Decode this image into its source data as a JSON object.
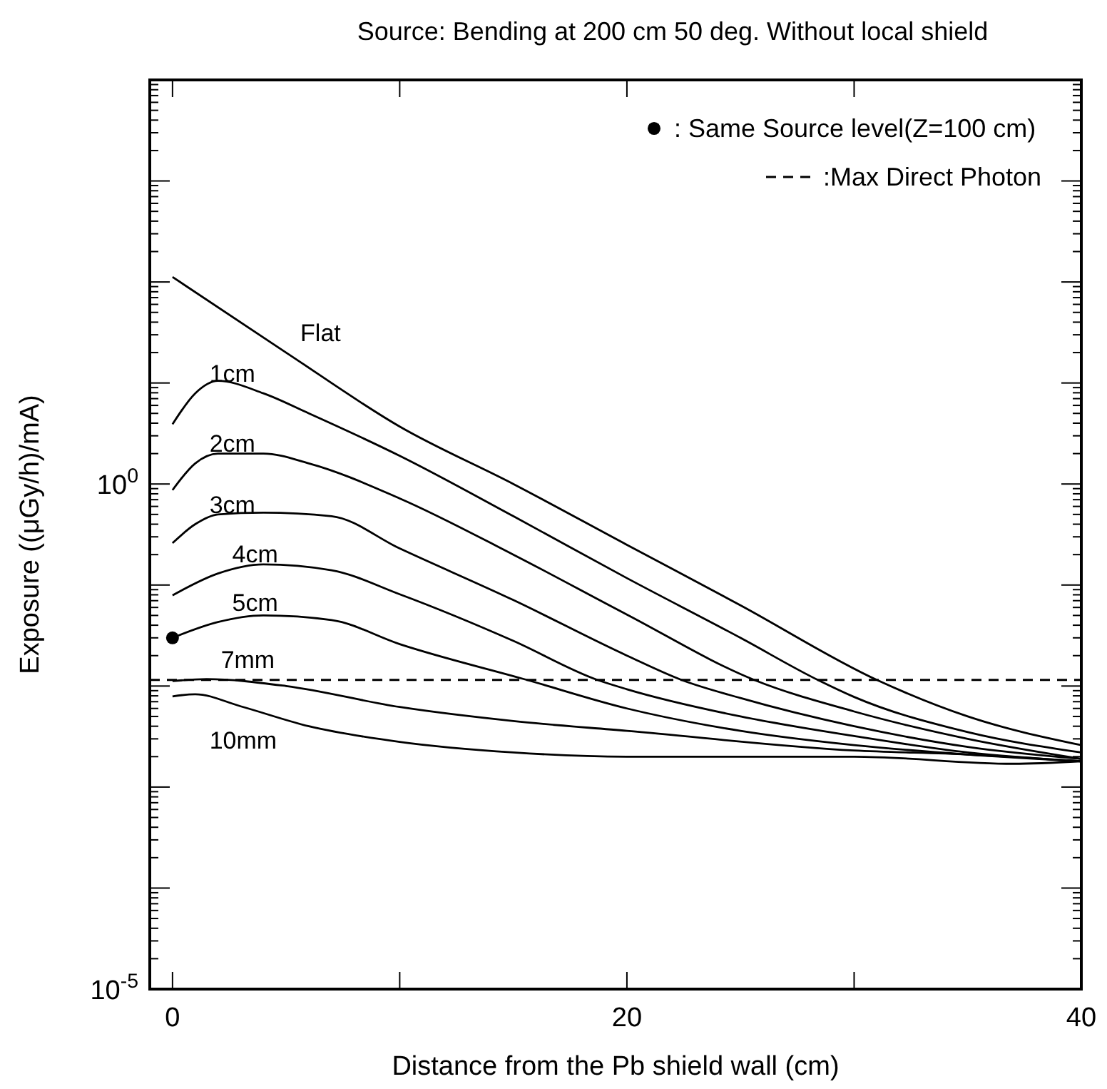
{
  "chart_data": {
    "type": "line",
    "title": "Source: Bending at 200 cm 50 deg. Without local shield",
    "xlabel": "Distance from the Pb shield wall (cm)",
    "ylabel": "Exposure ((μGy/h)/mA)",
    "log": "y",
    "xlim": [
      -1,
      40
    ],
    "ylim": [
      1e-05,
      10000
    ],
    "xticks": [
      0,
      {
        "value": 10,
        "label": null
      },
      20,
      {
        "value": 30,
        "label": null
      },
      40
    ],
    "yticks": [
      {
        "value": 1e-05,
        "label": "10$^{-5}$"
      },
      {
        "value": 0.0001,
        "label": null
      },
      {
        "value": 0.001,
        "label": null
      },
      {
        "value": 0.01,
        "label": null
      },
      {
        "value": 0.1,
        "label": null
      },
      {
        "value": 1,
        "label": "10$^{0}$"
      },
      {
        "value": 10,
        "label": null
      },
      {
        "value": 100,
        "label": null
      },
      {
        "value": 1000,
        "label": null
      },
      {
        "value": 10000,
        "label": null
      }
    ],
    "grid": false,
    "legend": "top right",
    "marker": "none",
    "line_style": "solid",
    "series": [
      {
        "name": "Flat",
        "color": "#000000",
        "x": [
          0,
          5,
          10,
          15,
          20,
          25,
          31,
          35,
          40
        ],
        "values": [
          112,
          20,
          3.7,
          1.0,
          0.25,
          0.063,
          0.0115,
          0.005,
          0.0026
        ]
      },
      {
        "name": "1cm",
        "color": "#000000",
        "x": [
          0,
          1,
          2,
          4,
          6,
          10,
          15,
          20,
          25,
          28.4,
          30,
          35,
          40
        ],
        "values": [
          3.9,
          7.9,
          10.5,
          7.9,
          5.0,
          1.9,
          0.48,
          0.117,
          0.03,
          0.0115,
          0.0078,
          0.0035,
          0.0022
        ]
      },
      {
        "name": "2cm",
        "color": "#000000",
        "x": [
          0,
          1,
          2,
          4,
          6,
          10,
          15,
          20,
          25.6,
          30,
          35,
          40
        ],
        "values": [
          0.87,
          1.6,
          2.0,
          2.0,
          1.6,
          0.72,
          0.2,
          0.051,
          0.0115,
          0.0056,
          0.003,
          0.0019
        ]
      },
      {
        "name": "3cm",
        "color": "#000000",
        "x": [
          0,
          1,
          2,
          4,
          7,
          10,
          15,
          20,
          22.4,
          25,
          30,
          35,
          40
        ],
        "values": [
          0.26,
          0.4,
          0.5,
          0.52,
          0.48,
          0.23,
          0.071,
          0.02,
          0.0115,
          0.0076,
          0.004,
          0.0025,
          0.0019
        ]
      },
      {
        "name": "4cm",
        "color": "#000000",
        "x": [
          0,
          2,
          4,
          7,
          10,
          15,
          18.7,
          20,
          25,
          30,
          35,
          40
        ],
        "values": [
          0.079,
          0.13,
          0.16,
          0.14,
          0.081,
          0.028,
          0.0115,
          0.0093,
          0.005,
          0.0032,
          0.0022,
          0.0018
        ]
      },
      {
        "name": "5cm",
        "color": "#000000",
        "x": [
          0,
          2,
          4,
          7,
          10,
          15.6,
          20,
          25,
          30,
          35,
          40
        ],
        "values": [
          0.03,
          0.043,
          0.05,
          0.045,
          0.026,
          0.0115,
          0.006,
          0.0036,
          0.0026,
          0.0021,
          0.0018
        ]
      },
      {
        "name": "7mm",
        "color": "#000000",
        "x": [
          0,
          1.5,
          5,
          10,
          15,
          20,
          30,
          35,
          40
        ],
        "values": [
          0.0112,
          0.0117,
          0.01,
          0.0062,
          0.0045,
          0.0036,
          0.0023,
          0.0021,
          0.0018
        ]
      },
      {
        "name": "10mm",
        "color": "#000000",
        "x": [
          0,
          1,
          3,
          6,
          10,
          15,
          20,
          30,
          37,
          40
        ],
        "values": [
          0.0079,
          0.0083,
          0.0063,
          0.004,
          0.0028,
          0.0022,
          0.002,
          0.002,
          0.0017,
          0.0018
        ]
      },
      {
        "name": ": Same Source level(Z=100 cm)",
        "type": "scatter",
        "marker": "circle",
        "color": "#000000",
        "x": [
          0
        ],
        "values": [
          0.03
        ]
      },
      {
        "name": ":Max Direct Photon",
        "type": "line",
        "line_style": "dashed",
        "color": "#000000",
        "x": [
          -1,
          40
        ],
        "values": [
          0.0115,
          0.0115
        ]
      }
    ]
  }
}
